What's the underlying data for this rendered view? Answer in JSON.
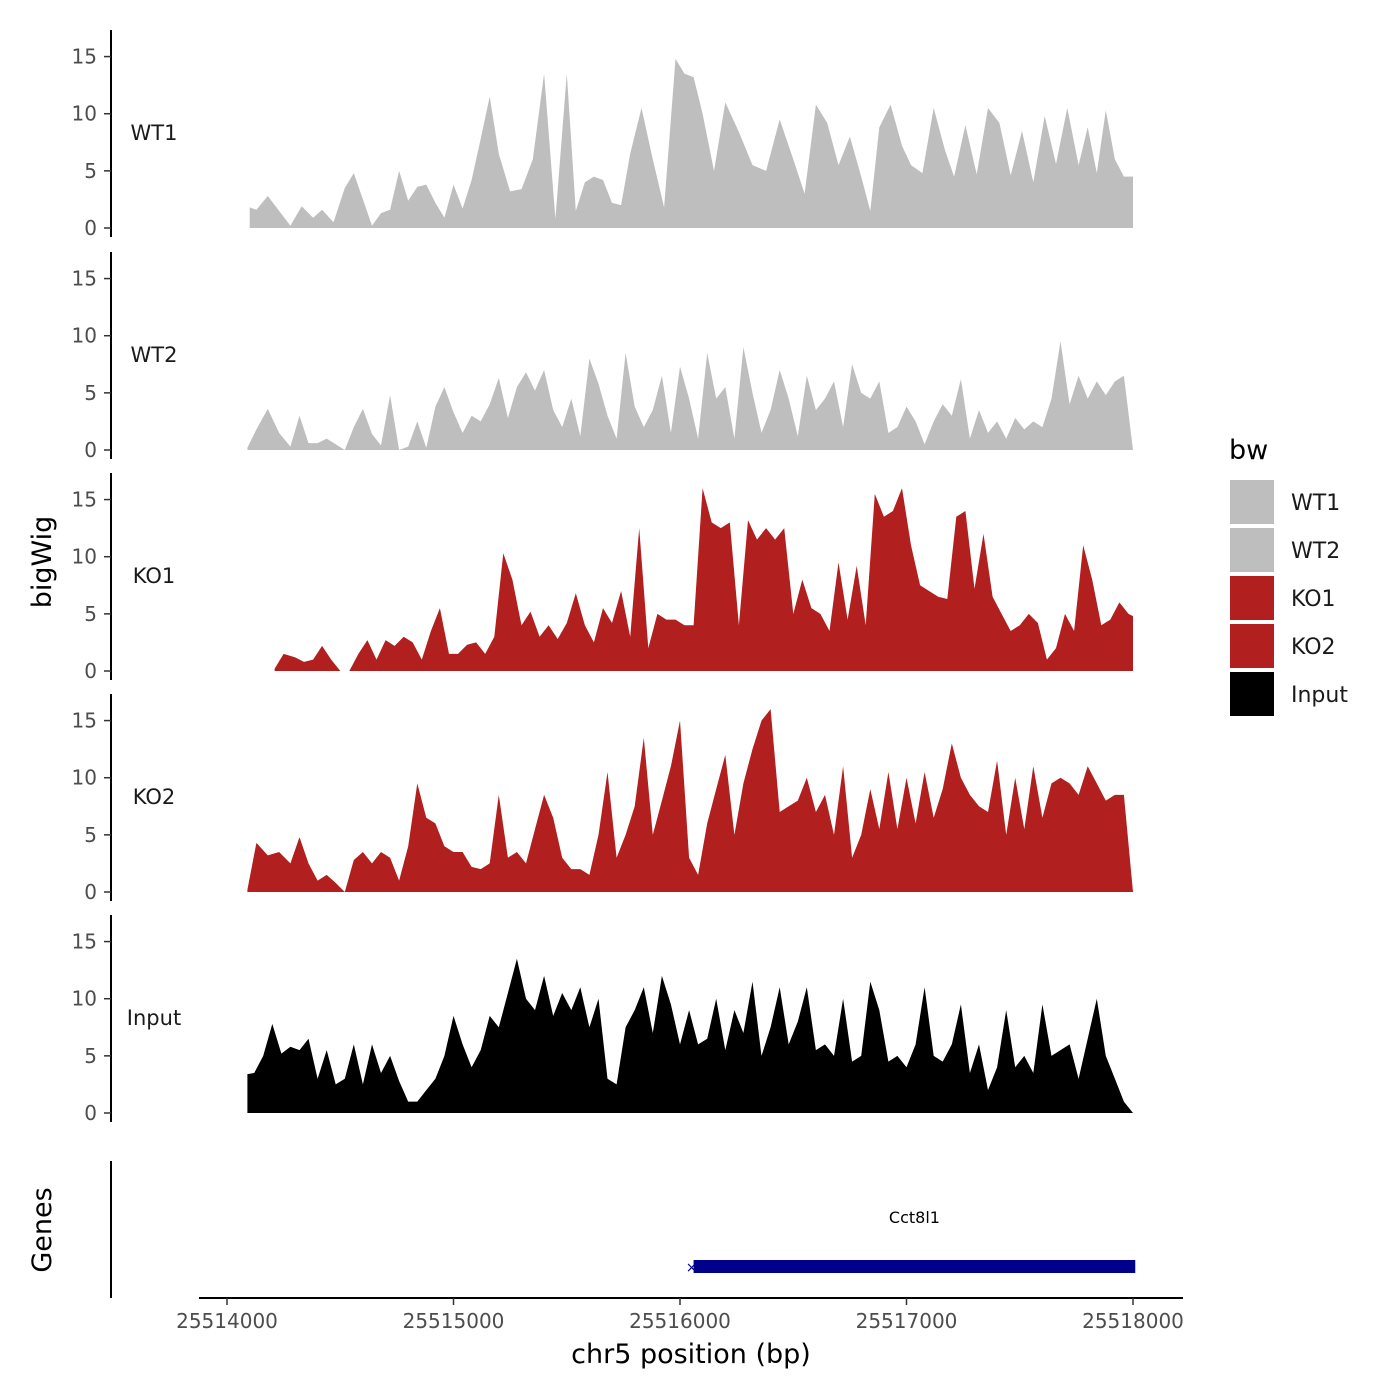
{
  "chart_data": {
    "type": "area",
    "xlabel": "chr5 position (bp)",
    "ylabel": "bigWig",
    "gene_panel_label": "Genes",
    "xlim": [
      25513700,
      25518210
    ],
    "x_ticks": [
      25514000,
      25515000,
      25516000,
      25517000,
      25518000
    ],
    "x_tick_labels": [
      "25514000",
      "25515000",
      "25516000",
      "25517000",
      "25518000"
    ],
    "ylim": [
      0,
      17.5
    ],
    "y_ticks": [
      0,
      5,
      10,
      15
    ],
    "y_tick_labels": [
      "0",
      "5",
      "10",
      "15"
    ],
    "legend": {
      "title": "bw",
      "entries": [
        {
          "label": "WT1",
          "color": "#bebebe"
        },
        {
          "label": "WT2",
          "color": "#bebebe"
        },
        {
          "label": "KO1",
          "color": "#b21f1f"
        },
        {
          "label": "KO2",
          "color": "#b21f1f"
        },
        {
          "label": "Input",
          "color": "#000000"
        }
      ]
    },
    "series": [
      {
        "name": "WT1",
        "color": "#bebebe",
        "x": [
          25514100,
          25514130,
          25514180,
          25514230,
          25514280,
          25514330,
          25514380,
          25514420,
          25514470,
          25514520,
          25514560,
          25514600,
          25514640,
          25514680,
          25514720,
          25514760,
          25514800,
          25514840,
          25514880,
          25514920,
          25514960,
          25515000,
          25515040,
          25515080,
          25515120,
          25515160,
          25515200,
          25515250,
          25515300,
          25515350,
          25515400,
          25515450,
          25515500,
          25515540,
          25515580,
          25515620,
          25515660,
          25515700,
          25515740,
          25515780,
          25515830,
          25515880,
          25515930,
          25515980,
          25516020,
          25516060,
          25516100,
          25516150,
          25516200,
          25516260,
          25516320,
          25516380,
          25516440,
          25516500,
          25516550,
          25516600,
          25516650,
          25516700,
          25516750,
          25516800,
          25516840,
          25516880,
          25516930,
          25516980,
          25517020,
          25517070,
          25517120,
          25517170,
          25517210,
          25517260,
          25517310,
          25517360,
          25517410,
          25517460,
          25517510,
          25517560,
          25517610,
          25517660,
          25517710,
          25517760,
          25517800,
          25517840,
          25517880,
          25517920,
          25517960,
          25518000
        ],
        "values": [
          1.8,
          1.6,
          2.8,
          1.5,
          0.2,
          1.9,
          0.9,
          1.6,
          0.5,
          3.5,
          4.8,
          2.5,
          0.2,
          1.3,
          1.6,
          5.0,
          2.4,
          3.6,
          3.8,
          2.2,
          0.9,
          3.8,
          1.7,
          4.2,
          7.8,
          11.5,
          6.5,
          3.2,
          3.4,
          6.0,
          13.5,
          0.8,
          13.5,
          1.5,
          4.0,
          4.5,
          4.2,
          2.2,
          2.0,
          6.5,
          10.5,
          6.0,
          1.8,
          14.8,
          13.5,
          13.2,
          10.0,
          5.0,
          11.0,
          8.4,
          5.5,
          5.0,
          9.5,
          6.0,
          3.0,
          10.8,
          9.2,
          5.5,
          8.0,
          4.5,
          1.5,
          8.8,
          10.8,
          7.2,
          5.5,
          4.8,
          10.5,
          6.8,
          4.5,
          9.0,
          4.7,
          10.5,
          9.2,
          4.6,
          8.5,
          4.0,
          9.8,
          5.6,
          10.5,
          5.5,
          8.8,
          4.8,
          10.3,
          6.0,
          4.5,
          4.5
        ]
      },
      {
        "name": "WT2",
        "color": "#bebebe",
        "x": [
          25514090,
          25514130,
          25514180,
          25514230,
          25514280,
          25514320,
          25514360,
          25514400,
          25514440,
          25514480,
          25514520,
          25514560,
          25514600,
          25514640,
          25514680,
          25514720,
          25514760,
          25514800,
          25514840,
          25514880,
          25514920,
          25514960,
          25515000,
          25515040,
          25515080,
          25515120,
          25515160,
          25515200,
          25515240,
          25515280,
          25515320,
          25515360,
          25515400,
          25515440,
          25515480,
          25515520,
          25515560,
          25515600,
          25515640,
          25515680,
          25515720,
          25515760,
          25515800,
          25515840,
          25515880,
          25515920,
          25515960,
          25516000,
          25516040,
          25516080,
          25516120,
          25516160,
          25516200,
          25516240,
          25516280,
          25516320,
          25516360,
          25516400,
          25516440,
          25516480,
          25516520,
          25516560,
          25516600,
          25516640,
          25516680,
          25516720,
          25516760,
          25516800,
          25516840,
          25516880,
          25516920,
          25516960,
          25517000,
          25517040,
          25517080,
          25517120,
          25517160,
          25517200,
          25517240,
          25517280,
          25517320,
          25517360,
          25517400,
          25517440,
          25517480,
          25517520,
          25517560,
          25517600,
          25517640,
          25517680,
          25517720,
          25517760,
          25517800,
          25517840,
          25517880,
          25517920,
          25517960,
          25518000
        ],
        "values": [
          0.2,
          1.8,
          3.6,
          1.5,
          0.3,
          3.0,
          0.6,
          0.6,
          1.0,
          0.5,
          0.0,
          2.0,
          3.6,
          1.4,
          0.4,
          4.8,
          0.0,
          0.3,
          2.5,
          0.2,
          3.8,
          5.5,
          3.3,
          1.5,
          3.0,
          2.5,
          4.0,
          6.3,
          2.8,
          5.5,
          6.8,
          5.2,
          7.0,
          3.5,
          2.0,
          4.5,
          1.2,
          8.0,
          5.8,
          3.0,
          1.0,
          8.5,
          3.8,
          2.0,
          3.5,
          6.5,
          1.5,
          7.3,
          4.5,
          1.0,
          8.5,
          4.5,
          5.5,
          1.0,
          9.0,
          5.0,
          1.5,
          3.5,
          7.0,
          4.5,
          1.2,
          6.5,
          3.5,
          4.5,
          6.0,
          2.0,
          7.5,
          5.0,
          4.5,
          6.0,
          1.5,
          2.0,
          3.8,
          2.5,
          0.5,
          2.5,
          4.0,
          3.0,
          6.2,
          1.0,
          3.5,
          1.5,
          2.5,
          1.0,
          2.8,
          1.8,
          2.5,
          2.0,
          4.5,
          9.5,
          4.0,
          6.5,
          4.5,
          6.0,
          4.8,
          6.0,
          6.5,
          0.0
        ]
      },
      {
        "name": "KO1",
        "color": "#b21f1f",
        "x": [
          25514210,
          25514250,
          25514300,
          25514340,
          25514380,
          25514420,
          25514460,
          25514500,
          25514540,
          25514580,
          25514620,
          25514660,
          25514700,
          25514740,
          25514780,
          25514820,
          25514860,
          25514900,
          25514940,
          25514980,
          25515020,
          25515060,
          25515100,
          25515140,
          25515180,
          25515220,
          25515260,
          25515300,
          25515340,
          25515380,
          25515420,
          25515460,
          25515500,
          25515540,
          25515580,
          25515620,
          25515660,
          25515700,
          25515740,
          25515780,
          25515820,
          25515860,
          25515900,
          25515940,
          25515980,
          25516020,
          25516060,
          25516100,
          25516140,
          25516180,
          25516220,
          25516260,
          25516300,
          25516340,
          25516380,
          25516420,
          25516460,
          25516500,
          25516540,
          25516580,
          25516620,
          25516660,
          25516700,
          25516740,
          25516780,
          25516820,
          25516860,
          25516900,
          25516940,
          25516980,
          25517020,
          25517060,
          25517100,
          25517140,
          25517180,
          25517220,
          25517260,
          25517300,
          25517340,
          25517380,
          25517420,
          25517460,
          25517500,
          25517540,
          25517580,
          25517620,
          25517660,
          25517700,
          25517740,
          25517780,
          25517820,
          25517860,
          25517900,
          25517940,
          25517980,
          25518000
        ],
        "values": [
          0.2,
          1.5,
          1.2,
          0.8,
          1.0,
          2.2,
          1.0,
          0.0,
          0.0,
          1.5,
          2.7,
          1.0,
          2.7,
          2.2,
          3.0,
          2.5,
          1.0,
          3.5,
          5.5,
          1.5,
          1.5,
          2.3,
          2.5,
          1.5,
          3.0,
          10.3,
          8.0,
          4.0,
          5.2,
          3.0,
          4.0,
          2.8,
          4.2,
          6.8,
          4.0,
          2.5,
          5.5,
          4.2,
          7.0,
          3.0,
          12.5,
          2.0,
          5.0,
          4.5,
          4.5,
          4.0,
          4.0,
          16.0,
          13.0,
          12.5,
          13.0,
          4.0,
          13.2,
          11.5,
          12.5,
          11.5,
          12.5,
          5.0,
          8.0,
          5.5,
          5.0,
          3.5,
          9.5,
          4.5,
          9.2,
          4.0,
          15.5,
          13.5,
          14.0,
          16.0,
          11.0,
          7.5,
          7.0,
          6.5,
          6.3,
          13.5,
          14.0,
          7.2,
          12.0,
          6.5,
          5.0,
          3.5,
          4.0,
          5.0,
          4.2,
          1.0,
          2.0,
          5.0,
          3.5,
          11.0,
          8.0,
          4.0,
          4.5,
          6.0,
          5.0,
          4.8
        ]
      },
      {
        "name": "KO2",
        "color": "#b21f1f",
        "x": [
          25514090,
          25514130,
          25514180,
          25514230,
          25514280,
          25514320,
          25514360,
          25514400,
          25514440,
          25514480,
          25514520,
          25514560,
          25514600,
          25514640,
          25514680,
          25514720,
          25514760,
          25514800,
          25514840,
          25514880,
          25514920,
          25514960,
          25515000,
          25515040,
          25515080,
          25515120,
          25515160,
          25515200,
          25515240,
          25515280,
          25515320,
          25515360,
          25515400,
          25515440,
          25515480,
          25515520,
          25515560,
          25515600,
          25515640,
          25515680,
          25515720,
          25515760,
          25515800,
          25515840,
          25515880,
          25515920,
          25515960,
          25516000,
          25516040,
          25516080,
          25516120,
          25516160,
          25516200,
          25516240,
          25516280,
          25516320,
          25516360,
          25516400,
          25516440,
          25516480,
          25516520,
          25516560,
          25516600,
          25516640,
          25516680,
          25516720,
          25516760,
          25516800,
          25516840,
          25516880,
          25516920,
          25516960,
          25517000,
          25517040,
          25517080,
          25517120,
          25517160,
          25517200,
          25517240,
          25517280,
          25517320,
          25517360,
          25517400,
          25517440,
          25517480,
          25517520,
          25517560,
          25517600,
          25517640,
          25517680,
          25517720,
          25517760,
          25517800,
          25517840,
          25517880,
          25517920,
          25517960,
          25518000
        ],
        "values": [
          0.2,
          4.3,
          3.2,
          3.5,
          2.5,
          4.8,
          2.5,
          1.0,
          1.5,
          0.8,
          0.0,
          2.8,
          3.5,
          2.5,
          3.5,
          3.0,
          1.0,
          4.0,
          9.5,
          6.5,
          6.0,
          4.0,
          3.5,
          3.5,
          2.2,
          2.0,
          2.5,
          8.5,
          3.0,
          3.5,
          2.5,
          5.5,
          8.5,
          6.5,
          3.0,
          2.0,
          2.0,
          1.5,
          5.0,
          10.5,
          3.0,
          5.0,
          7.5,
          13.5,
          5.0,
          8.0,
          11.0,
          15.0,
          3.0,
          1.5,
          6.0,
          9.0,
          12.0,
          5.0,
          9.5,
          12.5,
          15.0,
          16.0,
          7.0,
          7.5,
          8.0,
          10.0,
          7.0,
          8.5,
          5.0,
          11.0,
          3.0,
          5.0,
          9.0,
          5.5,
          10.5,
          5.5,
          10.0,
          6.0,
          10.5,
          6.5,
          9.0,
          13.0,
          10.0,
          8.5,
          7.5,
          7.0,
          11.5,
          5.0,
          10.0,
          5.5,
          11.0,
          6.5,
          9.5,
          10.0,
          9.5,
          8.5,
          11.0,
          9.5,
          8.0,
          8.5,
          8.5,
          0.0
        ]
      },
      {
        "name": "Input",
        "color": "#000000",
        "x": [
          25514090,
          25514120,
          25514160,
          25514200,
          25514240,
          25514280,
          25514320,
          25514360,
          25514400,
          25514440,
          25514480,
          25514520,
          25514560,
          25514600,
          25514640,
          25514680,
          25514720,
          25514760,
          25514800,
          25514840,
          25514880,
          25514920,
          25514960,
          25515000,
          25515040,
          25515080,
          25515120,
          25515160,
          25515200,
          25515240,
          25515280,
          25515320,
          25515360,
          25515400,
          25515440,
          25515480,
          25515520,
          25515560,
          25515600,
          25515640,
          25515680,
          25515720,
          25515760,
          25515800,
          25515840,
          25515880,
          25515920,
          25515960,
          25516000,
          25516040,
          25516080,
          25516120,
          25516160,
          25516200,
          25516240,
          25516280,
          25516320,
          25516360,
          25516400,
          25516440,
          25516480,
          25516520,
          25516560,
          25516600,
          25516640,
          25516680,
          25516720,
          25516760,
          25516800,
          25516840,
          25516880,
          25516920,
          25516960,
          25517000,
          25517040,
          25517080,
          25517120,
          25517160,
          25517200,
          25517240,
          25517280,
          25517320,
          25517360,
          25517400,
          25517440,
          25517480,
          25517520,
          25517560,
          25517600,
          25517640,
          25517680,
          25517720,
          25517760,
          25517800,
          25517840,
          25517880,
          25517920,
          25517960,
          25518000
        ],
        "values": [
          3.4,
          3.5,
          5.0,
          7.8,
          5.2,
          5.8,
          5.5,
          6.5,
          3.0,
          5.5,
          2.5,
          3.0,
          6.0,
          2.5,
          6.0,
          3.5,
          5.0,
          2.8,
          1.0,
          1.0,
          2.0,
          3.0,
          5.0,
          8.5,
          6.0,
          4.0,
          5.5,
          8.5,
          7.5,
          10.5,
          13.5,
          10.0,
          9.0,
          12.0,
          8.5,
          10.5,
          9.0,
          11.0,
          7.5,
          10.0,
          3.0,
          2.5,
          7.5,
          9.0,
          11.0,
          7.0,
          12.0,
          9.5,
          6.0,
          9.0,
          6.0,
          6.5,
          10.0,
          5.5,
          9.0,
          7.0,
          11.5,
          5.0,
          7.5,
          11.0,
          6.0,
          8.0,
          11.0,
          5.5,
          6.0,
          5.0,
          10.0,
          4.5,
          5.0,
          11.5,
          9.0,
          4.5,
          5.0,
          4.0,
          6.0,
          11.0,
          5.0,
          4.5,
          6.0,
          9.5,
          3.5,
          6.0,
          2.0,
          4.0,
          9.0,
          4.0,
          5.0,
          3.5,
          9.5,
          5.0,
          5.5,
          6.0,
          3.0,
          6.5,
          10.0,
          5.0,
          3.0,
          1.0,
          0.0
        ]
      }
    ],
    "gene": {
      "name": "Cct8l1",
      "start": 25516060,
      "end": 25518010,
      "color": "#00008b"
    }
  }
}
